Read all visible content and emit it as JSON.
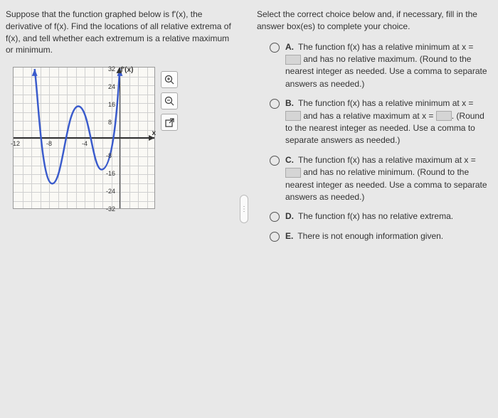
{
  "question_text": "Suppose that the function graphed below is f'(x), the derivative of f(x). Find the locations of all relative extrema of f(x), and tell whether each extremum is a relative maximum or minimum.",
  "instruction_text": "Select the correct choice below and, if necessary, fill in the answer box(es) to complete your choice.",
  "graph": {
    "y_axis_label": "f'(x)",
    "x_axis_label": "x",
    "x_ticks": [
      "-12",
      "-8",
      "-4"
    ],
    "y_ticks_top": [
      "32",
      "24",
      "16",
      "8"
    ],
    "y_ticks_bot": [
      "-8",
      "-16",
      "-24",
      "-32"
    ]
  },
  "choices": {
    "a": {
      "letter": "A.",
      "pre": "The function f(x) has a relative minimum at x = ",
      "post": " and has no relative maximum. (Round to the nearest integer as needed. Use a comma to separate answers as needed.)"
    },
    "b": {
      "letter": "B.",
      "pre1": "The function f(x) has a relative minimum at x = ",
      "mid": " and has a relative maximum at x = ",
      "post": ". (Round to the nearest integer as needed. Use a comma to separate answers as needed.)"
    },
    "c": {
      "letter": "C.",
      "pre": "The function f(x) has a relative maximum at x = ",
      "post": " and has no relative minimum. (Round to the nearest integer as needed. Use a comma to separate answers as needed.)"
    },
    "d": {
      "letter": "D.",
      "text": "The function f(x) has no relative extrema."
    },
    "e": {
      "letter": "E.",
      "text": "There is not enough information given."
    }
  },
  "colors": {
    "curve": "#3a5bcc",
    "bg": "#e8e8e8"
  }
}
